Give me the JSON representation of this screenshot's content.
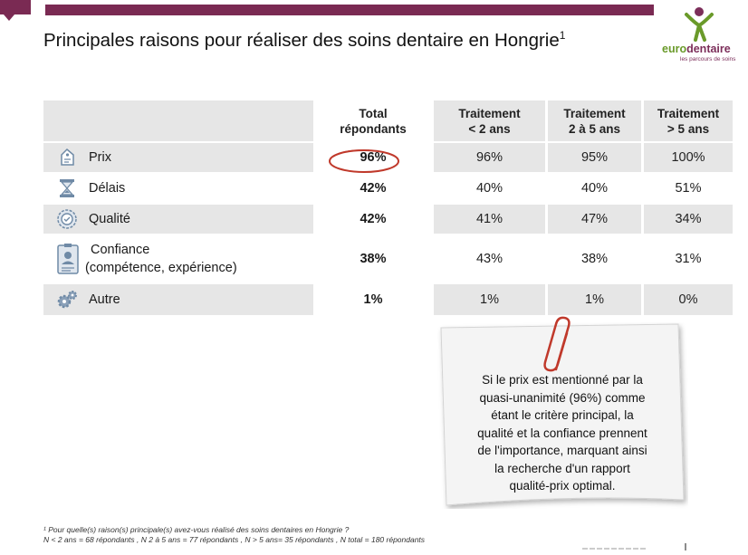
{
  "header": {
    "title": "Principales raisons pour réaliser des soins dentaire en Hongrie",
    "title_sup": "1"
  },
  "logo": {
    "name_part1": "euro",
    "name_part2": "dentaire",
    "tagline": "les parcours de soins",
    "colors": {
      "green": "#6a9a2a",
      "purple": "#7c2e5a"
    }
  },
  "table": {
    "columns": [
      {
        "line1": "Total",
        "line2": "répondants"
      },
      {
        "line1": "Traitement",
        "line2": "< 2 ans"
      },
      {
        "line1": "Traitement",
        "line2": "2 à 5 ans"
      },
      {
        "line1": "Traitement",
        "line2": "> 5 ans"
      }
    ],
    "rows": [
      {
        "icon": "price-tag-icon",
        "label": "Prix",
        "label2": "",
        "total": "96%",
        "lt2": "96%",
        "y2to5": "95%",
        "gt5": "100%"
      },
      {
        "icon": "hourglass-icon",
        "label": "Délais",
        "label2": "",
        "total": "42%",
        "lt2": "40%",
        "y2to5": "40%",
        "gt5": "51%"
      },
      {
        "icon": "quality-seal-icon",
        "label": "Qualité",
        "label2": "",
        "total": "42%",
        "lt2": "41%",
        "y2to5": "47%",
        "gt5": "34%"
      },
      {
        "icon": "id-badge-icon",
        "label": "Confiance",
        "label2": "(compétence, expérience)",
        "total": "38%",
        "lt2": "43%",
        "y2to5": "38%",
        "gt5": "31%"
      },
      {
        "icon": "gears-icon",
        "label": "Autre",
        "label2": "",
        "total": "1%",
        "lt2": "1%",
        "y2to5": "1%",
        "gt5": "0%"
      }
    ]
  },
  "note": {
    "text_lines": [
      "Si le prix est mentionné par la",
      "quasi-unanimité (96%) comme",
      "étant le critère principal, la",
      "qualité et la confiance prennent",
      "de l'importance, marquant ainsi",
      "la recherche d'un rapport",
      "qualité-prix optimal."
    ]
  },
  "footnote": {
    "line1": "¹ Pour quelle(s) raison(s) principale(s) avez-vous réalisé des soins dentaires en Hongrie ?",
    "line2": "N < 2 ans = 68 répondants ,  N  2 à 5 ans = 77 répondants , N > 5 ans= 35 répondants , N total = 180 répondants"
  },
  "colors": {
    "accent_bar": "#7a2a53",
    "row_shade": "#e6e6e6",
    "highlight_circle": "#c0392b",
    "paperclip": "#c0392b"
  }
}
